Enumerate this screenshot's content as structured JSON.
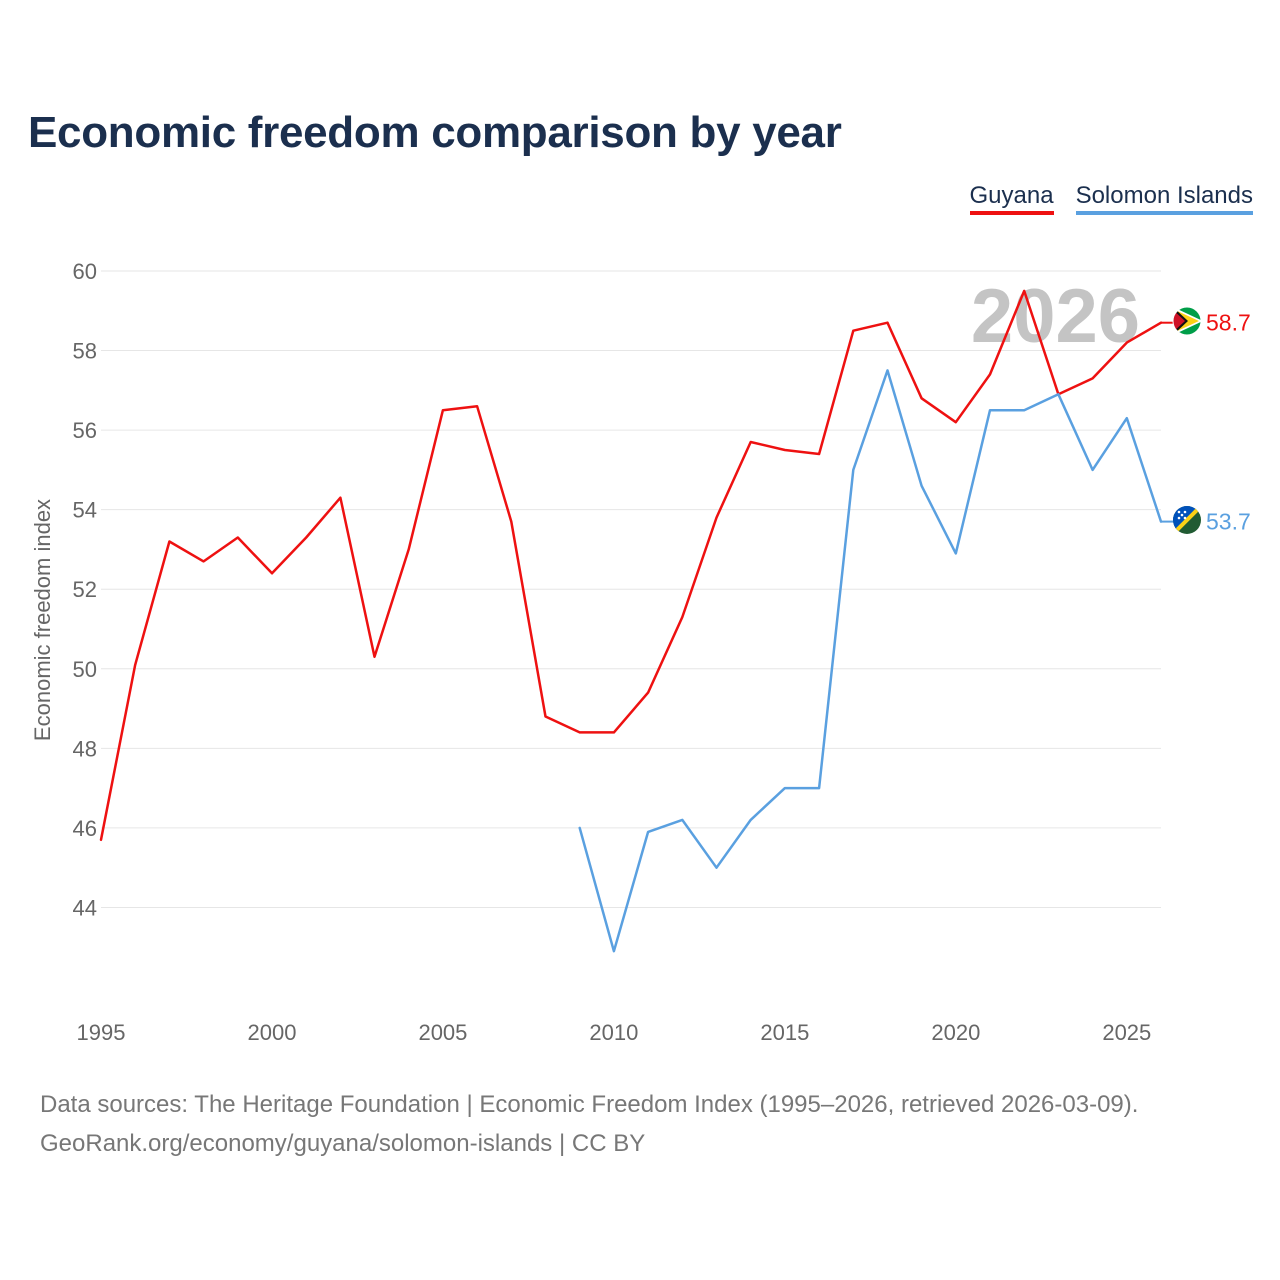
{
  "title": "Economic freedom comparison by year",
  "legend": [
    {
      "label": "Guyana",
      "color": "#ee1111"
    },
    {
      "label": "Solomon Islands",
      "color": "#5aa0e0"
    }
  ],
  "year_watermark": "2026",
  "footer": {
    "line1": "Data sources: The Heritage Foundation | Economic Freedom Index (1995–2026, retrieved 2026-03-09).",
    "line2": "GeoRank.org/economy/guyana/solomon-islands | CC BY"
  },
  "chart_data": {
    "type": "line",
    "title": "Economic freedom comparison by year",
    "xlabel": "",
    "ylabel": "Economic freedom index",
    "xlim": [
      1995,
      2026
    ],
    "ylim": [
      42,
      60
    ],
    "x_ticks": [
      1995,
      2000,
      2005,
      2010,
      2015,
      2020,
      2025
    ],
    "y_ticks": [
      44,
      46,
      48,
      50,
      52,
      54,
      56,
      58,
      60
    ],
    "grid": true,
    "legend_position": "top-right",
    "series": [
      {
        "name": "Guyana",
        "color": "#ee1111",
        "end_label": "58.7",
        "flag": "guyana-flag-icon",
        "points": [
          [
            1995,
            45.7
          ],
          [
            1996,
            50.1
          ],
          [
            1997,
            53.2
          ],
          [
            1998,
            52.7
          ],
          [
            1999,
            53.3
          ],
          [
            2000,
            52.4
          ],
          [
            2001,
            53.3
          ],
          [
            2002,
            54.3
          ],
          [
            2003,
            50.3
          ],
          [
            2004,
            53.0
          ],
          [
            2005,
            56.5
          ],
          [
            2006,
            56.6
          ],
          [
            2007,
            53.7
          ],
          [
            2008,
            48.8
          ],
          [
            2009,
            48.4
          ],
          [
            2010,
            48.4
          ],
          [
            2011,
            49.4
          ],
          [
            2012,
            51.3
          ],
          [
            2013,
            53.8
          ],
          [
            2014,
            55.7
          ],
          [
            2015,
            55.5
          ],
          [
            2016,
            55.4
          ],
          [
            2017,
            58.5
          ],
          [
            2018,
            58.7
          ],
          [
            2019,
            56.8
          ],
          [
            2020,
            56.2
          ],
          [
            2021,
            57.4
          ],
          [
            2022,
            59.5
          ],
          [
            2023,
            56.9
          ],
          [
            2024,
            57.3
          ],
          [
            2025,
            58.2
          ],
          [
            2026,
            58.7
          ]
        ]
      },
      {
        "name": "Solomon Islands",
        "color": "#5aa0e0",
        "end_label": "53.7",
        "flag": "solomon-islands-flag-icon",
        "points": [
          [
            2009,
            46.0
          ],
          [
            2010,
            42.9
          ],
          [
            2011,
            45.9
          ],
          [
            2012,
            46.2
          ],
          [
            2013,
            45.0
          ],
          [
            2014,
            46.2
          ],
          [
            2015,
            47.0
          ],
          [
            2016,
            47.0
          ],
          [
            2017,
            55.0
          ],
          [
            2018,
            57.5
          ],
          [
            2019,
            54.6
          ],
          [
            2020,
            52.9
          ],
          [
            2021,
            56.5
          ],
          [
            2022,
            56.5
          ],
          [
            2023,
            56.9
          ],
          [
            2024,
            55.0
          ],
          [
            2025,
            56.3
          ],
          [
            2026,
            53.7
          ]
        ]
      }
    ]
  }
}
